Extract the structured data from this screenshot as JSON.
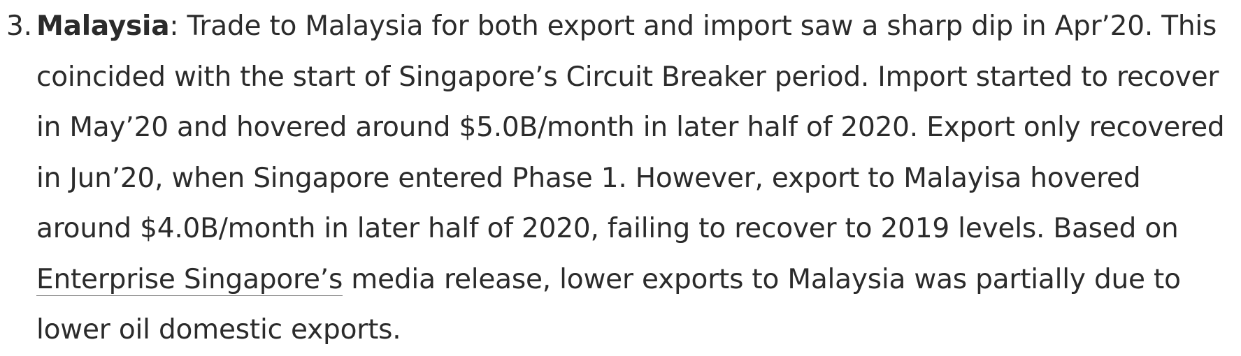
{
  "item": {
    "number": "3.",
    "lead": "Malaysia",
    "colon": ":",
    "text_before_link": " Trade to Malaysia for both export and import saw a sharp dip in Apr’20. This coincided with the start of Singapore’s Circuit Breaker period. Import started to recover in May’20 and hovered around $5.0B/month in later half of 2020. Export only recovered in Jun’20, when Singapore entered Phase 1. However, export to Malayisa hovered around $4.0B/month in later half of 2020, failing to recover to 2019 levels. Based on ",
    "link_text": "Enterprise Singapore’s",
    "text_after_link": " media release, lower exports to Malaysia was partially due to lower oil domestic exports."
  }
}
